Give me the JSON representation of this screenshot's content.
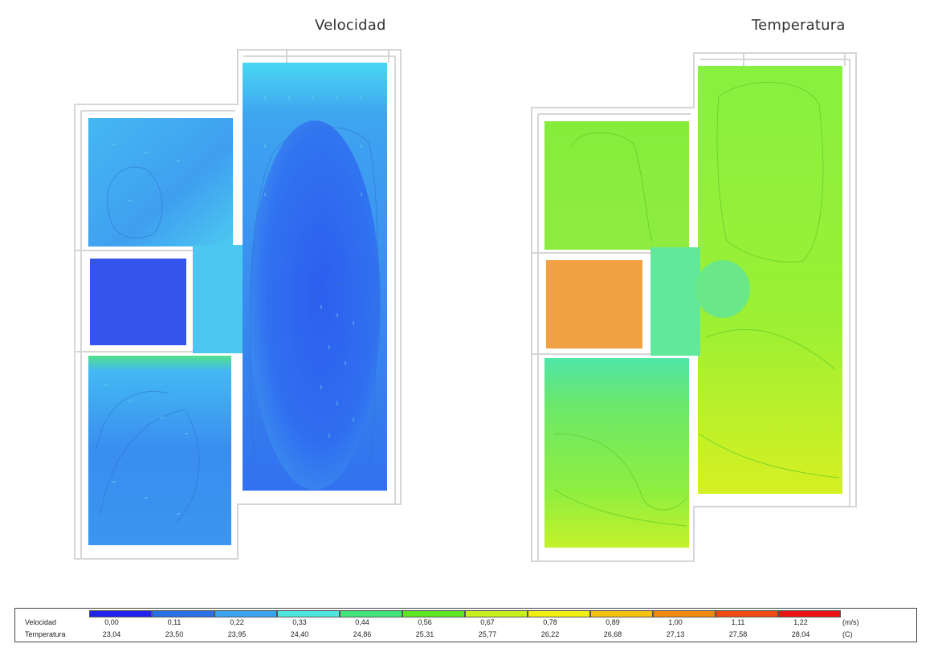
{
  "titles": {
    "velocity": "Velocidad",
    "temperature": "Temperatura"
  },
  "legend": {
    "rows": [
      {
        "label": "Velocidad",
        "unit": "(m/s)",
        "values": [
          "0,00",
          "0,11",
          "0,22",
          "0,33",
          "0,44",
          "0,56",
          "0,67",
          "0,78",
          "0,89",
          "1,00",
          "1,11",
          "1,22"
        ]
      },
      {
        "label": "Temperatura",
        "unit": "(C)",
        "values": [
          "23,04",
          "23,50",
          "23,95",
          "24,40",
          "24,86",
          "25,31",
          "25,77",
          "26,22",
          "26,68",
          "27,13",
          "27,58",
          "28,04"
        ]
      }
    ],
    "colors": [
      "#2222ee",
      "#2a6fe6",
      "#3aa3f0",
      "#4de6e0",
      "#43e57a",
      "#5ee621",
      "#c6f01c",
      "#f2ef10",
      "#f4c312",
      "#f08a10",
      "#ee4a14",
      "#ee1313"
    ]
  },
  "colors": {
    "vel_bg": "#45b5f2",
    "vel_dark": "#2f64ee",
    "vel_mid": "#3a8cef",
    "vel_closet": "#3454ec",
    "temp_bg": "#8ef23c",
    "temp_left": "#7ce850",
    "temp_warm": "#bcee2e",
    "temp_closet": "#f1a042",
    "wall": "#d9d9d9"
  }
}
